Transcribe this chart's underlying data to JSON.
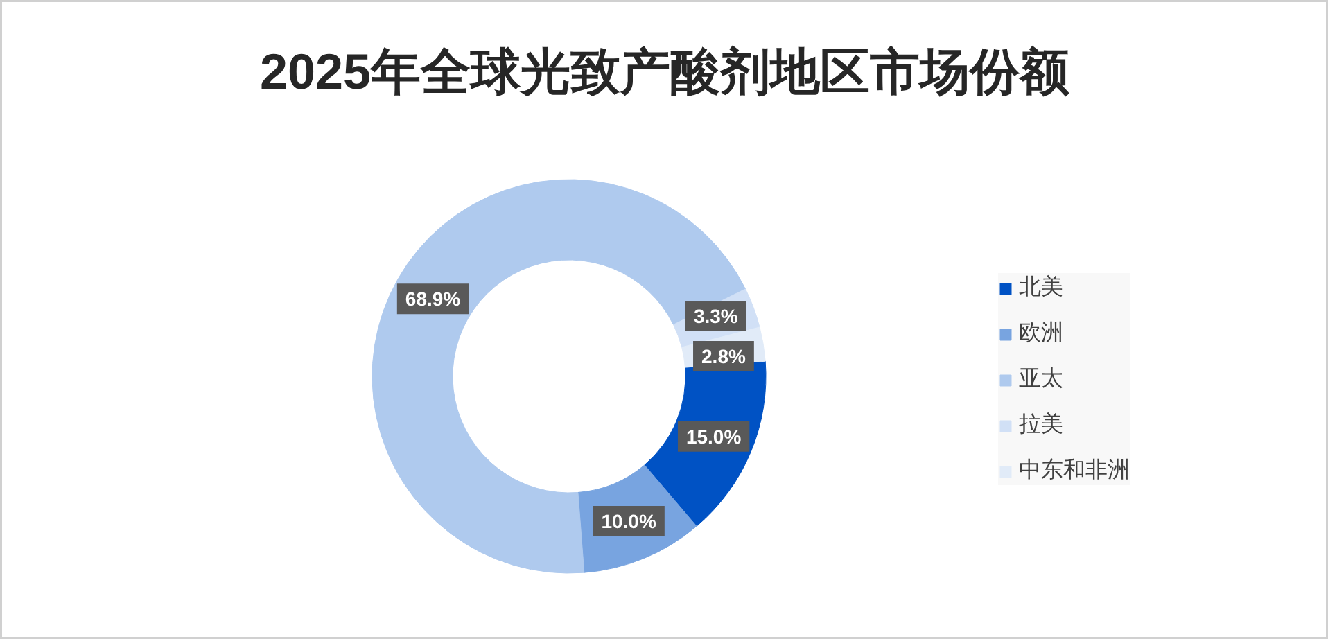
{
  "chart_data": {
    "type": "donut",
    "title": "2025年全球光致产酸剂地区市场份额",
    "categories": [
      "北美",
      "欧洲",
      "亚太",
      "拉美",
      "中东和非洲"
    ],
    "values": [
      15.0,
      10.0,
      68.9,
      3.3,
      2.8
    ],
    "colors": [
      "#0052c4",
      "#78a4e0",
      "#afcaee",
      "#d1e0f6",
      "#e1ebf8"
    ],
    "value_labels": [
      "15.0%",
      "10.0%",
      "68.9%",
      "3.3%",
      "2.8%"
    ],
    "legend": "right"
  }
}
